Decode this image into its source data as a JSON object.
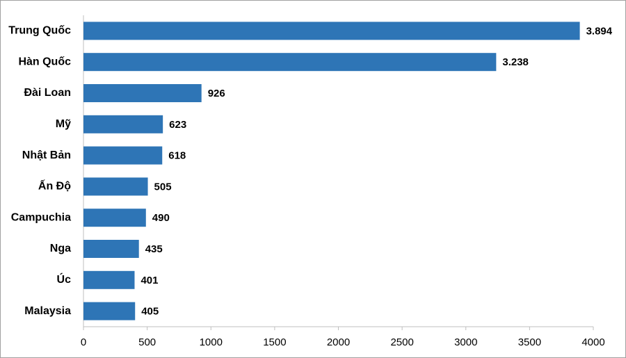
{
  "chart_data": {
    "type": "bar",
    "orientation": "horizontal",
    "categories": [
      "Trung Quốc",
      "Hàn Quốc",
      "Đài Loan",
      "Mỹ",
      "Nhật Bản",
      "Ấn Độ",
      "Campuchia",
      "Nga",
      "Úc",
      "Malaysia"
    ],
    "values": [
      3894,
      3238,
      926,
      623,
      618,
      505,
      490,
      435,
      401,
      405
    ],
    "value_labels": [
      "3.894",
      "3.238",
      "926",
      "623",
      "618",
      "505",
      "490",
      "435",
      "401",
      "405"
    ],
    "color": "#2e75b6",
    "xlim": [
      0,
      4000
    ],
    "xticks": [
      0,
      500,
      1000,
      1500,
      2000,
      2500,
      3000,
      3500,
      4000
    ],
    "grid": false
  }
}
